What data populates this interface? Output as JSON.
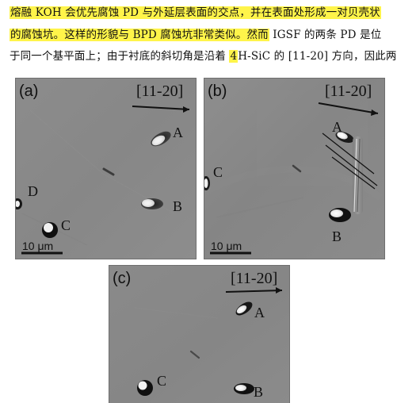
{
  "text": {
    "line1_parts": [
      "熔融 KOH 会优先腐蚀 PD 与外延层表面的交点，并在表面处形成一对贝壳状"
    ],
    "line2_highlight": "的腐蚀坑。这样的形貌与 BPD 腐蚀坑非常类似。然而",
    "line2_rest": " IGSF 的两条 PD 是位",
    "line3_start": "于同一个基平面上；由于衬底的斜切角是沿着 ",
    "line3_highlight": "4",
    "line3_rest": "H-SiC 的 [11-20] 方向，因此两"
  },
  "panels": {
    "a": {
      "label": "(a)",
      "direction": "[11-20]",
      "features": [
        "A",
        "B",
        "C",
        "D"
      ],
      "scale": "10 μm"
    },
    "b": {
      "label": "(b)",
      "direction": "[11-20]",
      "features": [
        "A",
        "B",
        "C"
      ],
      "scale": "10 μm"
    },
    "c": {
      "label": "(c)",
      "direction": "[11-20]",
      "features": [
        "A",
        "B",
        "C"
      ]
    }
  }
}
